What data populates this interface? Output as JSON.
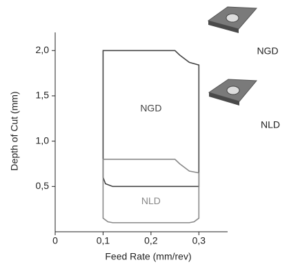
{
  "chart_data": {
    "type": "region",
    "x_label": "Feed Rate (mm/rev)",
    "y_label": "Depth of Cut (mm)",
    "xlim": [
      0,
      0.36
    ],
    "ylim": [
      0,
      2.2
    ],
    "xticks": [
      0,
      {
        "value": 0.1,
        "label": "0,1"
      },
      {
        "value": 0.2,
        "label": "0,2"
      },
      {
        "value": 0.3,
        "label": "0,3"
      }
    ],
    "yticks": [
      {
        "value": 0.5,
        "label": "0,5"
      },
      {
        "value": 1.0,
        "label": "1,0"
      },
      {
        "value": 1.5,
        "label": "1,5"
      },
      {
        "value": 2.0,
        "label": "2,0"
      }
    ],
    "series": [
      {
        "name": "NGD",
        "color": "#444444",
        "x": [
          0.1,
          0.25,
          0.26,
          0.28,
          0.3,
          0.3,
          0.12,
          0.105,
          0.1
        ],
        "y": [
          2.0,
          2.0,
          1.95,
          1.87,
          1.84,
          0.5,
          0.5,
          0.53,
          0.6
        ]
      },
      {
        "name": "NLD",
        "color": "#888888",
        "x": [
          0.1,
          0.25,
          0.26,
          0.28,
          0.3,
          0.3,
          0.29,
          0.28,
          0.12,
          0.11,
          0.1
        ],
        "y": [
          0.8,
          0.8,
          0.75,
          0.67,
          0.65,
          0.15,
          0.11,
          0.1,
          0.1,
          0.11,
          0.15
        ]
      }
    ]
  }
}
